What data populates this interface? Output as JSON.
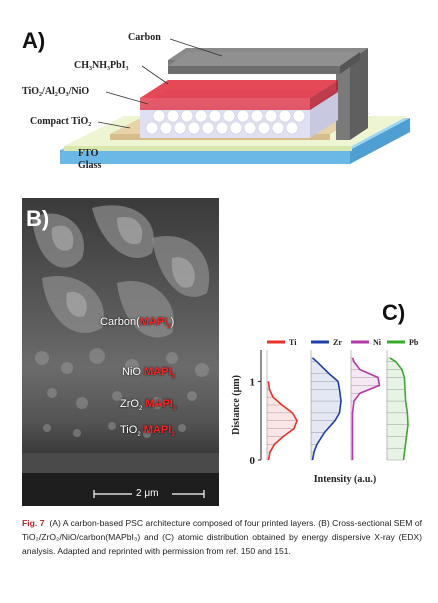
{
  "panel_a": {
    "letter": "A)",
    "labels": {
      "carbon": "Carbon",
      "perovskite": "CH₃NH₃PbI₃",
      "scaffold": "TiO₂/Al₂O₃/NiO",
      "compact": "Compact TiO₂",
      "fto": "FTO",
      "glass": "Glass"
    },
    "colors": {
      "carbon": "#6d6d6d",
      "perovskite": "#e0283a",
      "scaffold": "#eef0fb",
      "compact": "#e6cfa8",
      "fto": "#e8f2c8",
      "glass": "#7ec8ee"
    }
  },
  "panel_b": {
    "letter": "B)",
    "layers": [
      {
        "prefix": "Carbon(",
        "highlight": "MAPI",
        "sub": "3",
        "suffix": ")"
      },
      {
        "prefix": "NiO ",
        "highlight": "MAPI",
        "sub": "3",
        "suffix": ""
      },
      {
        "prefix": "ZrO",
        "prefix_sub": "2",
        "highlight": "MAPI",
        "sub": "3",
        "suffix": ""
      },
      {
        "prefix": "TiO",
        "prefix_sub": "2",
        "highlight": "MAPI",
        "sub": "3",
        "suffix": ""
      }
    ],
    "scale_bar": "2 μm"
  },
  "panel_c": {
    "letter": "C)",
    "legend": [
      {
        "name": "Ti",
        "color": "#e8302a"
      },
      {
        "name": "Zr",
        "color": "#1f3fa8"
      },
      {
        "name": "Ni",
        "color": "#b23aa6"
      },
      {
        "name": "Pb",
        "color": "#3aa82a"
      }
    ],
    "ylabel": "Distance (μm)",
    "xlabel": "Intensity (a.u.)",
    "yticks": [
      "1",
      "0"
    ]
  },
  "chart_data": {
    "type": "line",
    "title": "",
    "xlabel": "Intensity (a.u.)",
    "ylabel": "Distance (μm)",
    "ylim": [
      0,
      1.4
    ],
    "yticks": [
      0,
      1
    ],
    "series": [
      {
        "name": "Ti",
        "x": [
          0.05,
          0.1,
          0.25,
          0.55,
          0.9,
          1.0,
          0.85,
          0.5,
          0.2,
          0.08,
          0.05
        ],
        "y": [
          0.0,
          0.1,
          0.2,
          0.3,
          0.4,
          0.5,
          0.6,
          0.7,
          0.8,
          0.9,
          1.0
        ]
      },
      {
        "name": "Zr",
        "x": [
          0.05,
          0.1,
          0.2,
          0.45,
          0.8,
          0.95,
          1.0,
          0.95,
          0.9,
          0.6,
          0.2,
          0.05
        ],
        "y": [
          0.0,
          0.1,
          0.2,
          0.35,
          0.5,
          0.6,
          0.75,
          0.9,
          1.0,
          1.1,
          1.25,
          1.3
        ]
      },
      {
        "name": "Ni",
        "x": [
          0.05,
          0.05,
          0.05,
          0.05,
          0.1,
          0.3,
          0.95,
          0.9,
          0.3,
          0.1,
          0.05
        ],
        "y": [
          0.0,
          0.2,
          0.4,
          0.6,
          0.75,
          0.85,
          0.95,
          1.05,
          1.15,
          1.25,
          1.3
        ]
      },
      {
        "name": "Pb",
        "x": [
          0.55,
          0.6,
          0.65,
          0.7,
          0.68,
          0.62,
          0.6,
          0.58,
          0.5,
          0.3,
          0.1
        ],
        "y": [
          0.0,
          0.15,
          0.3,
          0.45,
          0.6,
          0.75,
          0.9,
          1.05,
          1.15,
          1.25,
          1.3
        ]
      }
    ]
  },
  "caption": {
    "fig": "Fig. 7",
    "text": "(A) A carbon-based PSC architecture composed of four printed layers. (B) Cross-sectional SEM of TiO₂/ZrO₂/NiO/carbon(MAPbI₃) and (C) atomic distribution obtained by energy dispersive X-ray (EDX) analysis. Adapted and reprinted with permission from ref. 150 and 151."
  }
}
